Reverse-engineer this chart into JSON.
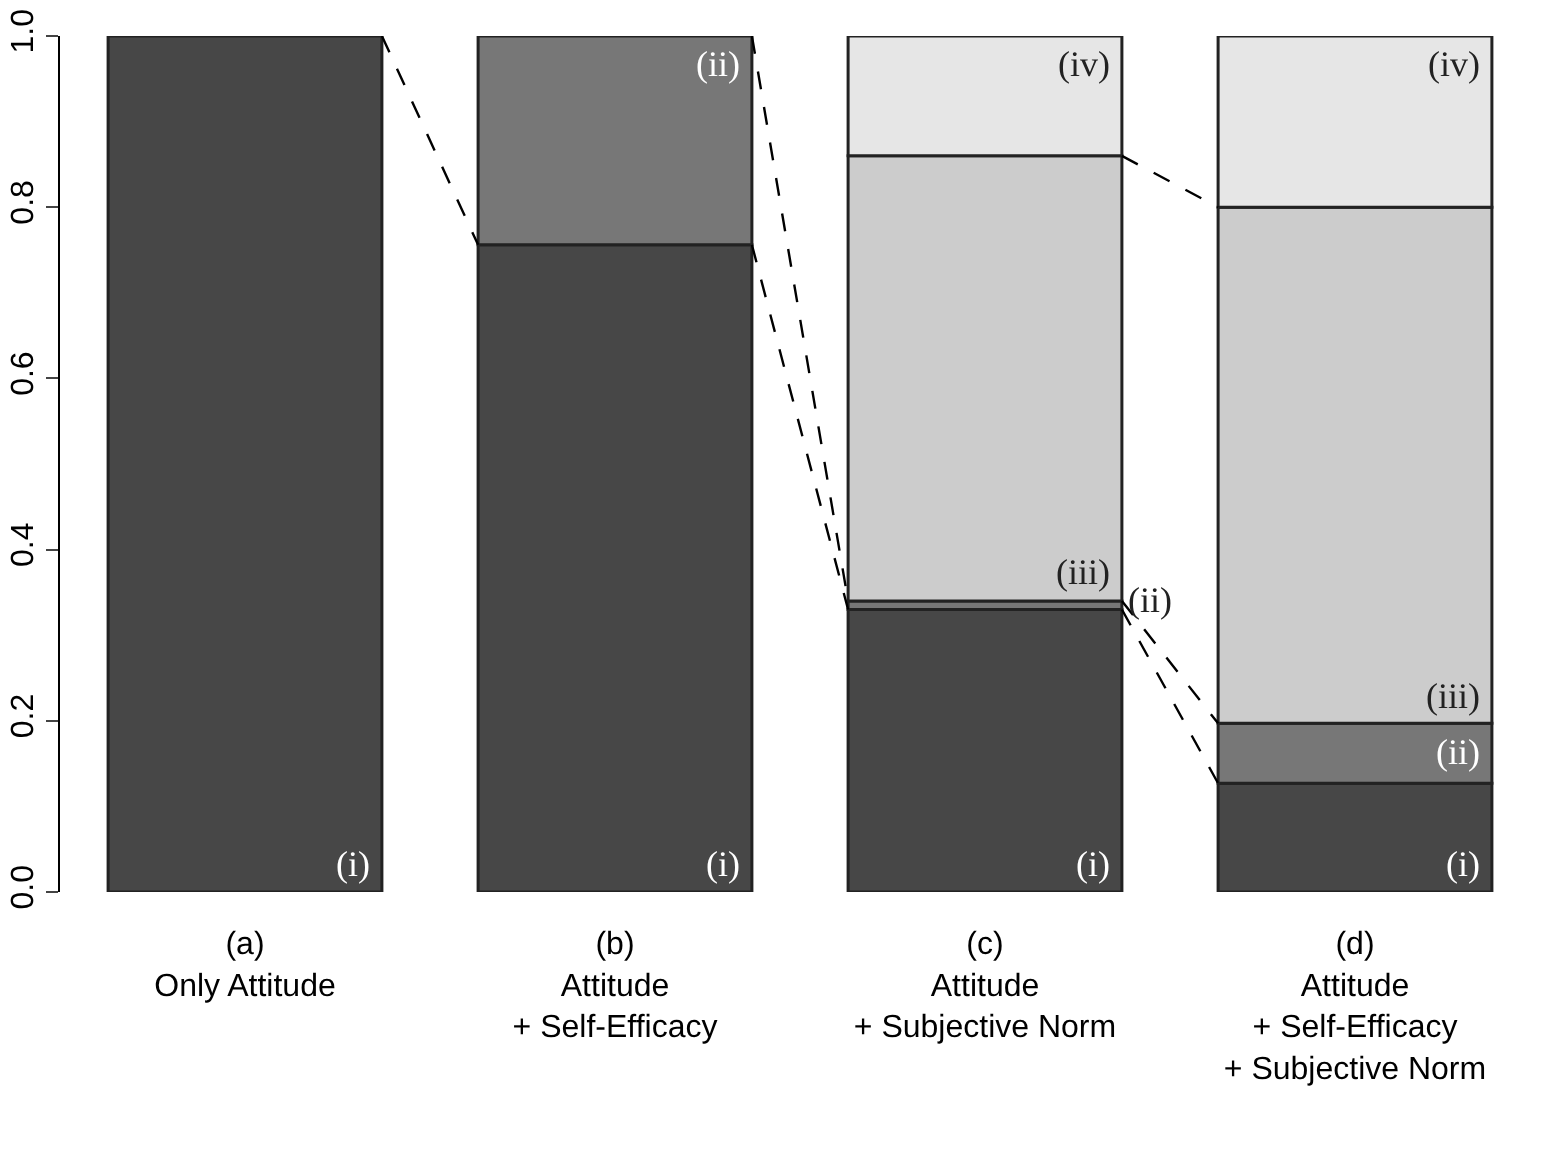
{
  "chart_data": {
    "type": "bar",
    "stacked": true,
    "categories": [
      "(a)\nOnly Attitude",
      "(b)\nAttitude\n+ Self-Efficacy",
      "(c)\nAttitude\n+ Subjective Norm",
      "(d)\nAttitude\n+ Self-Efficacy\n+ Subjective Norm"
    ],
    "series": [
      {
        "name": "(i)",
        "color": "#474747",
        "values": [
          1.0,
          0.756,
          0.33,
          0.127
        ]
      },
      {
        "name": "(ii)",
        "color": "#777777",
        "values": [
          null,
          0.244,
          0.01,
          0.07
        ]
      },
      {
        "name": "(iii)",
        "color": "#cccccc",
        "values": [
          null,
          null,
          0.52,
          0.603
        ]
      },
      {
        "name": "(iv)",
        "color": "#e6e6e6",
        "values": [
          null,
          null,
          0.14,
          0.2
        ]
      }
    ],
    "ylim": [
      0,
      1
    ],
    "yticks": [
      {
        "value": 0,
        "label": "0.0"
      },
      {
        "value": 0.2,
        "label": "0.2"
      },
      {
        "value": 0.4,
        "label": "0.4"
      },
      {
        "value": 0.6,
        "label": "0.6"
      },
      {
        "value": 0.8,
        "label": "0.8"
      },
      {
        "value": 1,
        "label": "1.0"
      }
    ],
    "legend": false
  }
}
